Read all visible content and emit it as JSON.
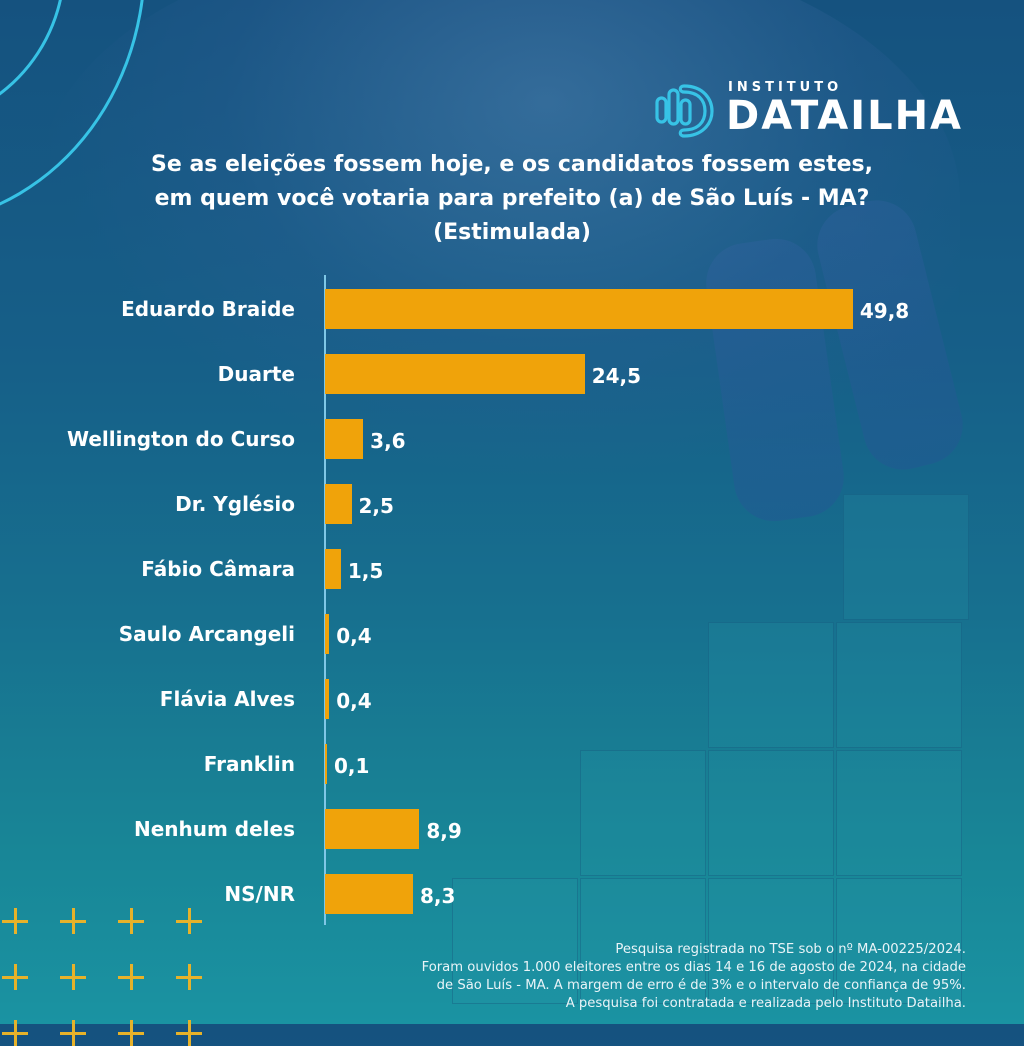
{
  "brand": {
    "small": "INSTITUTO",
    "name": "DATAILHA",
    "accent_color": "#37c3e6"
  },
  "title_lines": [
    "Se as eleições fossem hoje, e os candidatos fossem estes,",
    "em quem você votaria para prefeito (a) de São Luís - MA?",
    "(Estimulada)"
  ],
  "chart_data": {
    "type": "bar",
    "orientation": "horizontal",
    "title": "Se as eleições fossem hoje, e os candidatos fossem estes, em quem você votaria para prefeito (a) de São Luís - MA? (Estimulada)",
    "xlabel": "",
    "ylabel": "",
    "categories": [
      "Eduardo Braide",
      "Duarte",
      "Wellington do Curso",
      "Dr. Yglésio",
      "Fábio Câmara",
      "Saulo Arcangeli",
      "Flávia Alves",
      "Franklin",
      "Nenhum deles",
      "NS/NR"
    ],
    "values": [
      49.8,
      24.5,
      3.6,
      2.5,
      1.5,
      0.4,
      0.4,
      0.1,
      8.9,
      8.3
    ],
    "value_labels": [
      "49,8",
      "24,5",
      "3,6",
      "2,5",
      "1,5",
      "0,4",
      "0,4",
      "0,1",
      "8,9",
      "8,3"
    ],
    "xlim": [
      0,
      50
    ],
    "grid": false,
    "legend": "none",
    "bar_color": "#f0a30a"
  },
  "footer_lines": [
    "Pesquisa registrada no TSE sob o nº MA-00225/2024.",
    "Foram ouvidos 1.000 eleitores entre os dias 14 e 16 de agosto de 2024, na cidade",
    "de São Luís - MA. A margem de erro é de 3% e o intervalo de confiança de 95%.",
    "A pesquisa foi contratada e realizada pelo Instituto Datailha."
  ]
}
